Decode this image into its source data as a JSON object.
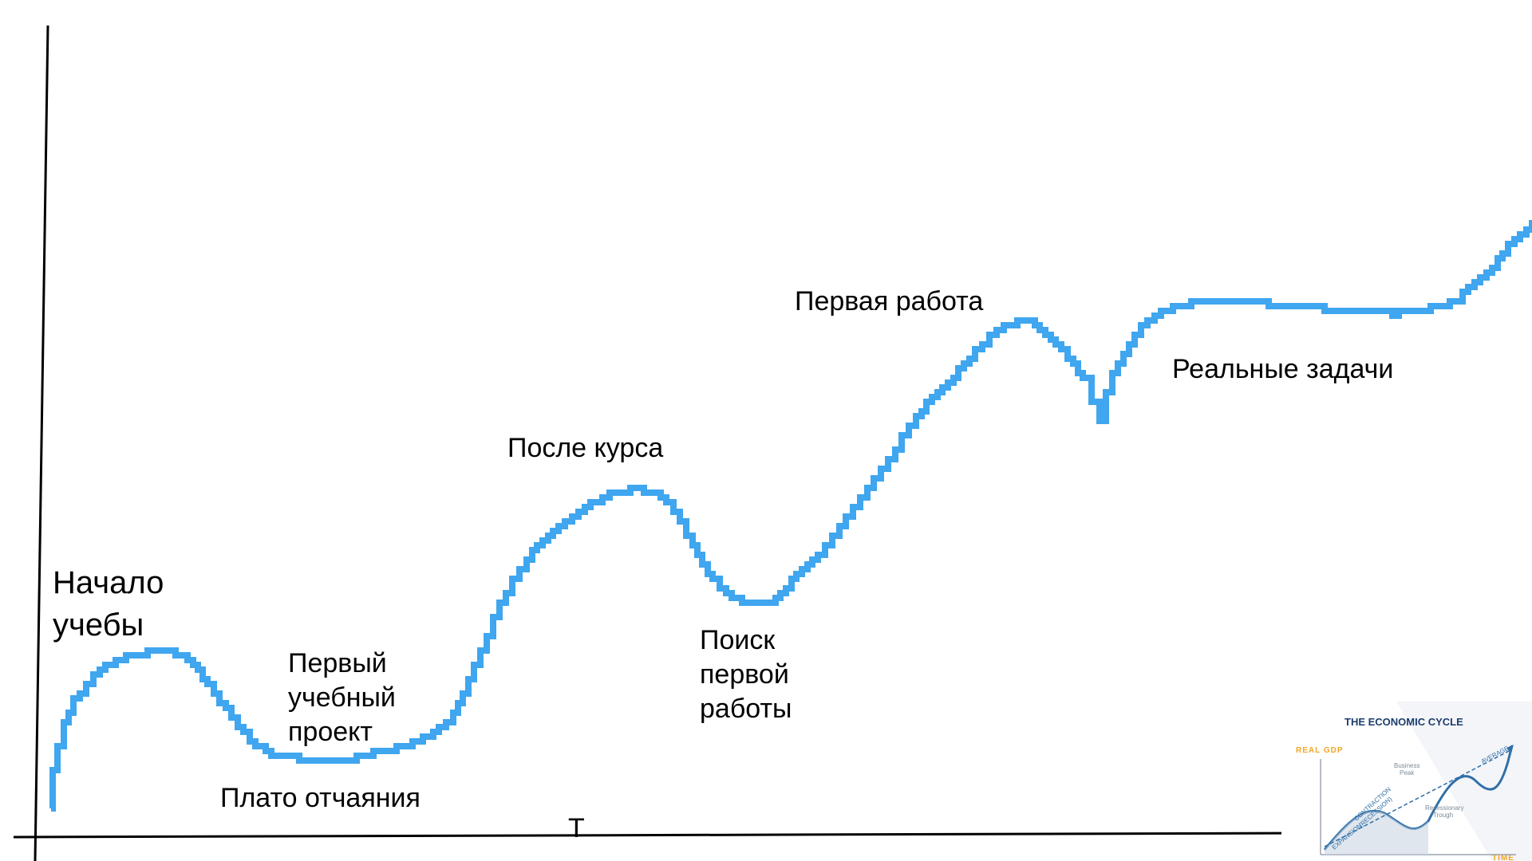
{
  "diagram": {
    "labels": {
      "start": [
        "Начало",
        "учебы"
      ],
      "first_project": [
        "Первый",
        "учебный",
        "проект"
      ],
      "plateau": "Плато отчаяния",
      "after_course": "После курса",
      "job_search": [
        "Поиск",
        "первой",
        "работы"
      ],
      "first_job": "Первая работа",
      "real_tasks": "Реальные задачи",
      "x_axis_mark": "T"
    },
    "curve_color": "#3fa6ef",
    "axis_color": "#000000"
  },
  "inset": {
    "title": "THE ECONOMIC CYCLE",
    "y_label": "REAL GDP",
    "x_label": "TIME",
    "average_label": "AVERAGE",
    "business_peak": [
      "Business",
      "Peak"
    ],
    "recessionary_trough": [
      "Recessionary",
      "Trough"
    ],
    "contraction": [
      "CONTRACTION",
      "(RECESSION)"
    ],
    "expansion": "EXPANSION",
    "accent_color": "#f5a623",
    "title_color": "#1d3d6b",
    "curve_color": "#2f6fa8"
  }
}
